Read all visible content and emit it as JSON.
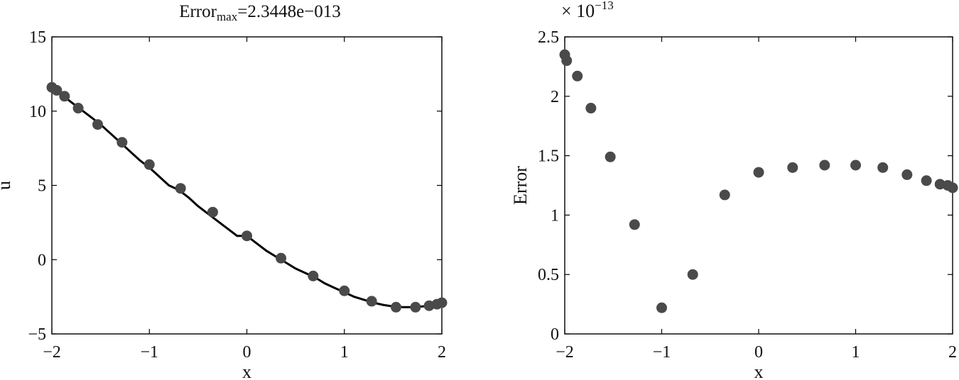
{
  "chart_data": [
    {
      "type": "line",
      "title": {
        "prefix": "Error",
        "subscript": "max",
        "suffix": "=2.3448e−013"
      },
      "xlabel": "x",
      "ylabel": "u",
      "xlim": [
        -2,
        2
      ],
      "ylim": [
        -5,
        15
      ],
      "xticks": [
        -2,
        -1,
        0,
        1,
        2
      ],
      "xtick_labels": [
        "−2",
        "−1",
        "0",
        "1",
        "2"
      ],
      "yticks": [
        -5,
        0,
        5,
        10,
        15
      ],
      "ytick_labels": [
        "−5",
        "0",
        "5",
        "10",
        "15"
      ],
      "grid": false,
      "series": [
        {
          "kind": "line",
          "color": "#000000",
          "x": [
            -2,
            -1.9,
            -1.8,
            -1.7,
            -1.6,
            -1.5,
            -1.4,
            -1.3,
            -1.2,
            -1.1,
            -1.0,
            -0.9,
            -0.8,
            -0.7,
            -0.6,
            -0.5,
            -0.4,
            -0.3,
            -0.2,
            -0.1,
            0.0,
            0.1,
            0.2,
            0.3,
            0.4,
            0.5,
            0.6,
            0.7,
            0.8,
            0.9,
            1.0,
            1.1,
            1.2,
            1.3,
            1.4,
            1.5,
            1.6,
            1.7,
            1.8,
            1.9,
            2.0
          ],
          "y": [
            11.6,
            11.1,
            10.6,
            10.1,
            9.6,
            9.1,
            8.5,
            7.9,
            7.3,
            6.7,
            6.2,
            5.6,
            5.0,
            4.7,
            4.2,
            3.6,
            3.1,
            2.6,
            2.1,
            1.6,
            1.6,
            1.1,
            0.6,
            0.2,
            -0.2,
            -0.6,
            -0.9,
            -1.2,
            -1.6,
            -1.9,
            -2.2,
            -2.5,
            -2.7,
            -2.9,
            -3.05,
            -3.15,
            -3.2,
            -3.2,
            -3.15,
            -3.1,
            -3.0
          ]
        },
        {
          "kind": "scatter",
          "color": "#4a4a4a",
          "x": [
            -2.0,
            -1.95,
            -1.87,
            -1.73,
            -1.53,
            -1.28,
            -1.0,
            -0.68,
            -0.35,
            0.0,
            0.35,
            0.68,
            1.0,
            1.28,
            1.53,
            1.73,
            1.87,
            1.95,
            2.0
          ],
          "y": [
            11.6,
            11.4,
            11.0,
            10.2,
            9.1,
            7.9,
            6.4,
            4.8,
            3.2,
            1.6,
            0.1,
            -1.1,
            -2.1,
            -2.8,
            -3.2,
            -3.2,
            -3.1,
            -3.0,
            -2.9
          ]
        }
      ]
    },
    {
      "type": "scatter",
      "title": "",
      "xlabel": "x",
      "ylabel": "Error",
      "scale_label": {
        "base": "× 10",
        "exponent": "−13"
      },
      "xlim": [
        -2,
        2
      ],
      "ylim": [
        0,
        2.5
      ],
      "xticks": [
        -2,
        -1,
        0,
        1,
        2
      ],
      "xtick_labels": [
        "−2",
        "−1",
        "0",
        "1",
        "2"
      ],
      "yticks": [
        0,
        0.5,
        1,
        1.5,
        2,
        2.5
      ],
      "ytick_labels": [
        "0",
        "0.5",
        "1",
        "1.5",
        "2",
        "2.5"
      ],
      "grid": false,
      "series": [
        {
          "kind": "scatter",
          "color": "#4a4a4a",
          "x": [
            -2.0,
            -1.98,
            -1.87,
            -1.73,
            -1.53,
            -1.28,
            -1.0,
            -0.68,
            -0.35,
            0.0,
            0.35,
            0.68,
            1.0,
            1.28,
            1.53,
            1.73,
            1.87,
            1.95,
            2.0
          ],
          "y": [
            2.35,
            2.3,
            2.17,
            1.9,
            1.49,
            0.92,
            0.22,
            0.5,
            1.17,
            1.36,
            1.4,
            1.42,
            1.42,
            1.4,
            1.34,
            1.29,
            1.26,
            1.25,
            1.23
          ]
        }
      ]
    }
  ]
}
